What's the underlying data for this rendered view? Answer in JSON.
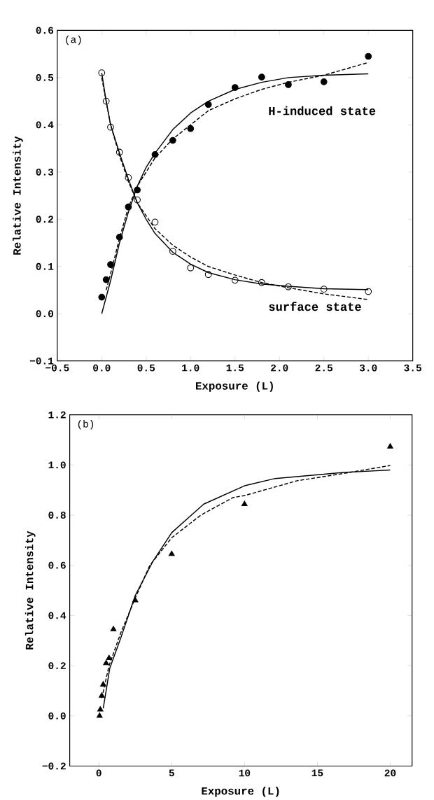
{
  "chart_data": [
    {
      "type": "scatter",
      "xlabel": "Exposure (L)",
      "ylabel": "Relative Intensity",
      "xlim": [
        -0.5,
        3.5
      ],
      "ylim": [
        -0.1,
        0.6
      ],
      "xticks": [
        {
          "value": -0.5,
          "label": "−0.5"
        },
        {
          "value": 0,
          "label": "0.0"
        },
        {
          "value": 0.5,
          "label": "0.5"
        },
        {
          "value": 1,
          "label": "1.0"
        },
        {
          "value": 1.5,
          "label": "1.5"
        },
        {
          "value": 2,
          "label": "2.0"
        },
        {
          "value": 2.5,
          "label": "2.5"
        },
        {
          "value": 3,
          "label": "3.0"
        },
        {
          "value": 3.5,
          "label": "3.5"
        }
      ],
      "yticks": [
        {
          "value": -0.1,
          "label": "−0.1"
        },
        {
          "value": 0,
          "label": "0.0"
        },
        {
          "value": 0.1,
          "label": "0.1"
        },
        {
          "value": 0.2,
          "label": "0.2"
        },
        {
          "value": 0.3,
          "label": "0.3"
        },
        {
          "value": 0.4,
          "label": "0.4"
        },
        {
          "value": 0.5,
          "label": "0.5"
        },
        {
          "value": 0.6,
          "label": "0.6"
        }
      ],
      "grid": false,
      "annotations": [
        "(a)",
        "H-induced state",
        "surface state"
      ],
      "series": [
        {
          "type": "scatter",
          "marker": "circle",
          "color": "#000000",
          "x": [
            0,
            0.05,
            0.1,
            0.2,
            0.3,
            0.4,
            0.6,
            0.8,
            1.0,
            1.2,
            1.5,
            1.8,
            2.1,
            2.5,
            3.0
          ],
          "values": [
            0.035,
            0.072,
            0.104,
            0.162,
            0.226,
            0.262,
            0.337,
            0.367,
            0.392,
            0.443,
            0.479,
            0.501,
            0.485,
            0.491,
            0.545
          ]
        },
        {
          "type": "scatter",
          "marker": "open circle",
          "color": "#000000",
          "x": [
            0,
            0.05,
            0.1,
            0.2,
            0.3,
            0.4,
            0.6,
            0.8,
            1.0,
            1.2,
            1.5,
            1.8,
            2.1,
            2.5,
            3.0
          ],
          "values": [
            0.51,
            0.45,
            0.395,
            0.342,
            0.288,
            0.241,
            0.194,
            0.132,
            0.097,
            0.083,
            0.071,
            0.066,
            0.057,
            0.052,
            0.047
          ]
        },
        {
          "type": "line",
          "line_style": "solid",
          "color": "#000000",
          "x": [
            0,
            0.1,
            0.2,
            0.3,
            0.4,
            0.5,
            0.6,
            0.8,
            1.0,
            1.2,
            1.5,
            1.8,
            2.1,
            2.5,
            3.0
          ],
          "values": [
            0,
            0.07,
            0.15,
            0.215,
            0.27,
            0.31,
            0.34,
            0.39,
            0.425,
            0.45,
            0.475,
            0.49,
            0.5,
            0.505,
            0.508
          ]
        },
        {
          "type": "line",
          "line_style": "dashed",
          "color": "#000000",
          "x": [
            0.05,
            0.1,
            0.2,
            0.3,
            0.4,
            0.6,
            0.8,
            1.0,
            1.2,
            1.5,
            1.8,
            2.1,
            2.5,
            3.0
          ],
          "values": [
            0.05,
            0.085,
            0.16,
            0.225,
            0.27,
            0.33,
            0.37,
            0.4,
            0.43,
            0.455,
            0.475,
            0.49,
            0.505,
            0.532
          ]
        },
        {
          "type": "line",
          "line_style": "solid",
          "color": "#000000",
          "x": [
            0,
            0.05,
            0.1,
            0.2,
            0.3,
            0.4,
            0.5,
            0.6,
            0.8,
            1.0,
            1.2,
            1.5,
            1.8,
            2.1,
            2.5,
            3.0
          ],
          "values": [
            0.51,
            0.45,
            0.4,
            0.34,
            0.285,
            0.235,
            0.2,
            0.17,
            0.13,
            0.105,
            0.087,
            0.072,
            0.063,
            0.058,
            0.053,
            0.051
          ]
        },
        {
          "type": "line",
          "line_style": "dashed",
          "color": "#000000",
          "x": [
            0,
            0.1,
            0.2,
            0.3,
            0.4,
            0.6,
            0.8,
            1.0,
            1.2,
            1.5,
            1.8,
            2.1,
            2.5,
            3.0
          ],
          "values": [
            0.5,
            0.4,
            0.335,
            0.28,
            0.235,
            0.18,
            0.145,
            0.12,
            0.1,
            0.082,
            0.066,
            0.055,
            0.042,
            0.03
          ]
        }
      ]
    },
    {
      "type": "scatter",
      "xlabel": "Exposure (L)",
      "ylabel": "Relative Intensity",
      "xlim": [
        -2,
        21.5
      ],
      "ylim": [
        -0.2,
        1.2
      ],
      "xticks": [
        0,
        5,
        10,
        15,
        20
      ],
      "yticks": [
        {
          "value": -0.2,
          "label": "−0.2"
        },
        {
          "value": 0,
          "label": "0.0"
        },
        {
          "value": 0.2,
          "label": "0.2"
        },
        {
          "value": 0.4,
          "label": "0.4"
        },
        {
          "value": 0.6,
          "label": "0.6"
        },
        {
          "value": 0.8,
          "label": "0.8"
        },
        {
          "value": 1.0,
          "label": "1.0"
        },
        {
          "value": 1.2,
          "label": "1.2"
        }
      ],
      "grid": false,
      "annotations": [
        "(b)"
      ],
      "series": [
        {
          "type": "scatter",
          "marker": "triangle",
          "color": "#000000",
          "x": [
            0.05,
            0.1,
            0.2,
            0.3,
            0.5,
            0.7,
            1.0,
            2.5,
            5,
            10,
            20
          ],
          "values": [
            0.0,
            0.025,
            0.08,
            0.125,
            0.21,
            0.23,
            0.345,
            0.46,
            0.645,
            0.844,
            1.073
          ]
        },
        {
          "type": "line",
          "line_style": "solid",
          "color": "#000000",
          "x": [
            0.3,
            0.5,
            0.75,
            1.5,
            2.5,
            3.7,
            5,
            7.2,
            10,
            12.1,
            16.8,
            20
          ],
          "values": [
            0.03,
            0.1,
            0.19,
            0.31,
            0.48,
            0.615,
            0.73,
            0.844,
            0.917,
            0.946,
            0.97,
            0.98
          ]
        },
        {
          "type": "line",
          "line_style": "dashed",
          "color": "#000000",
          "x": [
            0.2,
            0.7,
            1.5,
            2.5,
            3.5,
            5,
            7,
            9.2,
            10,
            13.6,
            16.8,
            20
          ],
          "values": [
            0.07,
            0.2,
            0.33,
            0.47,
            0.6,
            0.71,
            0.8,
            0.87,
            0.878,
            0.937,
            0.966,
            0.998
          ]
        }
      ]
    }
  ]
}
